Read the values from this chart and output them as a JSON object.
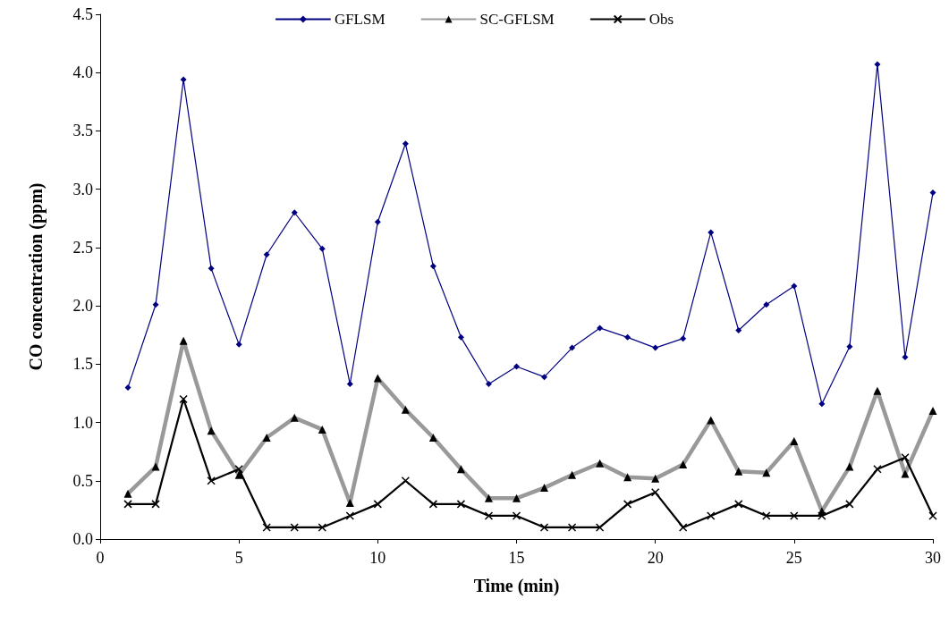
{
  "chart_data": {
    "type": "line",
    "xlabel": "Time (min)",
    "ylabel": "CO concentration (ppm)",
    "x": [
      1,
      2,
      3,
      4,
      5,
      6,
      7,
      8,
      9,
      10,
      11,
      12,
      13,
      14,
      15,
      16,
      17,
      18,
      19,
      20,
      21,
      22,
      23,
      24,
      25,
      26,
      27,
      28,
      29,
      30
    ],
    "xlim": [
      0,
      30
    ],
    "xticks": [
      0,
      5,
      10,
      15,
      20,
      25,
      30
    ],
    "ylim": [
      0,
      4.5
    ],
    "yticks": [
      {
        "value": 0,
        "label": "0.0"
      },
      {
        "value": 0.5,
        "label": "0.5"
      },
      {
        "value": 1,
        "label": "1.0"
      },
      {
        "value": 1.5,
        "label": "1.5"
      },
      {
        "value": 2,
        "label": "2.0"
      },
      {
        "value": 2.5,
        "label": "2.5"
      },
      {
        "value": 3,
        "label": "3.0"
      },
      {
        "value": 3.5,
        "label": "3.5"
      },
      {
        "value": 4,
        "label": "4.0"
      },
      {
        "value": 4.5,
        "label": "4.5"
      }
    ],
    "grid": false,
    "legend": "top",
    "line_style": "solid",
    "series": [
      {
        "name": "GFLSM",
        "color": "#000080",
        "marker": "diamond",
        "values": [
          1.3,
          2.01,
          3.94,
          2.32,
          1.67,
          2.44,
          2.8,
          2.49,
          1.33,
          2.72,
          3.39,
          2.34,
          1.73,
          1.33,
          1.48,
          1.39,
          1.64,
          1.81,
          1.73,
          1.64,
          1.72,
          2.63,
          1.79,
          2.01,
          2.17,
          1.16,
          1.65,
          4.07,
          1.56,
          2.97
        ]
      },
      {
        "name": "SC-GFLSM",
        "color": "#999999",
        "marker": "triangle",
        "values": [
          0.39,
          0.62,
          1.7,
          0.93,
          0.55,
          0.87,
          1.04,
          0.94,
          0.31,
          1.38,
          1.11,
          0.87,
          0.6,
          0.35,
          0.35,
          0.44,
          0.55,
          0.65,
          0.53,
          0.52,
          0.64,
          1.02,
          0.58,
          0.57,
          0.84,
          0.24,
          0.62,
          1.27,
          0.56,
          1.1
        ]
      },
      {
        "name": "Obs",
        "color": "#000000",
        "marker": "cross",
        "values": [
          0.3,
          0.3,
          1.2,
          0.5,
          0.6,
          0.1,
          0.1,
          0.1,
          0.2,
          0.3,
          0.5,
          0.3,
          0.3,
          0.2,
          0.2,
          0.1,
          0.1,
          0.1,
          0.3,
          0.4,
          0.1,
          0.2,
          0.3,
          0.2,
          0.2,
          0.2,
          0.3,
          0.6,
          0.7,
          0.2
        ]
      }
    ]
  }
}
